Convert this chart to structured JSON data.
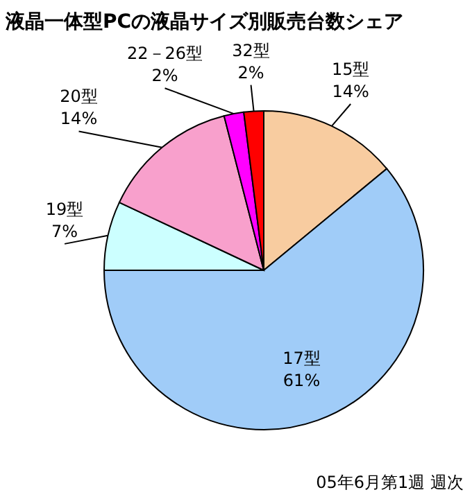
{
  "chart_data": {
    "type": "pie",
    "title": "液晶一体型PCの液晶サイズ別販売台数シェア",
    "categories": [
      "15型",
      "17型",
      "19型",
      "20型",
      "22－26型",
      "32型"
    ],
    "values": [
      14,
      61,
      7,
      14,
      2,
      2
    ],
    "value_labels": [
      "14%",
      "61%",
      "7%",
      "14%",
      "2%",
      "2%"
    ],
    "colors": [
      "#f8cca0",
      "#a0ccf8",
      "#ccffff",
      "#f8a0cc",
      "#ff00ff",
      "#ff0000"
    ],
    "annotations": [
      "05年6月第1週 週次"
    ]
  }
}
